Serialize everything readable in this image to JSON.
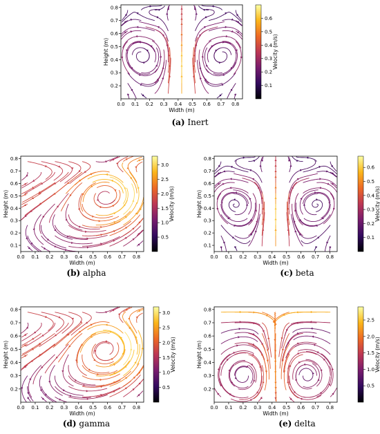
{
  "colorscale": [
    "#000004",
    "#320a5e",
    "#781c6d",
    "#bc3754",
    "#ed6925",
    "#fbb61a",
    "#fcffa4"
  ],
  "chart_data": [
    {
      "type": "streamplot",
      "caption_label": "(a)",
      "caption_text": "Inert",
      "xlabel": "Width (m)",
      "ylabel": "Height (m)",
      "xlim": [
        0.0,
        0.85
      ],
      "ylim": [
        0.1,
        0.82
      ],
      "xticks": [
        "0.0",
        "0.1",
        "0.2",
        "0.3",
        "0.4",
        "0.5",
        "0.6",
        "0.7",
        "0.8"
      ],
      "yticks": [
        "0.2",
        "0.3",
        "0.4",
        "0.5",
        "0.6",
        "0.7",
        "0.8"
      ],
      "colorbar_label": "Velocity (m/s)",
      "colorbar_range": [
        0.0,
        0.7
      ],
      "colorbar_ticks": [
        "0.1",
        "0.2",
        "0.3",
        "0.4",
        "0.5",
        "0.6"
      ],
      "flow_pattern": "symmetric-jets"
    },
    {
      "type": "streamplot",
      "caption_label": "(b)",
      "caption_text": "alpha",
      "xlabel": "Width (m)",
      "ylabel": "Height (m)",
      "xlim": [
        0.0,
        0.85
      ],
      "ylim": [
        0.05,
        0.82
      ],
      "xticks": [
        "0.0",
        "0.1",
        "0.2",
        "0.3",
        "0.4",
        "0.5",
        "0.6",
        "0.7",
        "0.8"
      ],
      "yticks": [
        "0.1",
        "0.2",
        "0.3",
        "0.4",
        "0.5",
        "0.6",
        "0.7",
        "0.8"
      ],
      "colorbar_label": "Velocity (m/s)",
      "colorbar_range": [
        0.0,
        3.3
      ],
      "colorbar_ticks": [
        "0.5",
        "1.0",
        "1.5",
        "2.0",
        "2.5",
        "3.0"
      ],
      "flow_pattern": "single-vortex"
    },
    {
      "type": "streamplot",
      "caption_label": "(c)",
      "caption_text": "beta",
      "xlabel": "Width (m)",
      "ylabel": "Height (m)",
      "xlim": [
        0.0,
        0.85
      ],
      "ylim": [
        0.05,
        0.82
      ],
      "xticks": [
        "0.0",
        "0.1",
        "0.2",
        "0.3",
        "0.4",
        "0.5",
        "0.6",
        "0.7",
        "0.8"
      ],
      "yticks": [
        "0.1",
        "0.2",
        "0.3",
        "0.4",
        "0.5",
        "0.6",
        "0.7",
        "0.8"
      ],
      "colorbar_label": "Velocity (m/s)",
      "colorbar_range": [
        0.0,
        0.68
      ],
      "colorbar_ticks": [
        "0.1",
        "0.2",
        "0.3",
        "0.4",
        "0.5",
        "0.6"
      ],
      "flow_pattern": "symmetric-jets"
    },
    {
      "type": "streamplot",
      "caption_label": "(d)",
      "caption_text": "gamma",
      "xlabel": "Width (m)",
      "ylabel": "Height (m)",
      "xlim": [
        0.0,
        0.85
      ],
      "ylim": [
        0.1,
        0.82
      ],
      "xticks": [
        "0.0",
        "0.1",
        "0.2",
        "0.3",
        "0.4",
        "0.5",
        "0.6",
        "0.7",
        "0.8"
      ],
      "yticks": [
        "0.2",
        "0.3",
        "0.4",
        "0.5",
        "0.6",
        "0.7",
        "0.8"
      ],
      "colorbar_label": "Velocity (m/s)",
      "colorbar_range": [
        0.0,
        3.2
      ],
      "colorbar_ticks": [
        "0.5",
        "1.0",
        "1.5",
        "2.0",
        "2.5",
        "3.0"
      ],
      "flow_pattern": "single-vortex"
    },
    {
      "type": "streamplot",
      "caption_label": "(e)",
      "caption_text": "delta",
      "xlabel": "Width (m)",
      "ylabel": "Height (m)",
      "xlim": [
        0.0,
        0.85
      ],
      "ylim": [
        0.1,
        0.82
      ],
      "xticks": [
        "0.0",
        "0.1",
        "0.2",
        "0.3",
        "0.4",
        "0.5",
        "0.6",
        "0.7",
        "0.8"
      ],
      "yticks": [
        "0.2",
        "0.3",
        "0.4",
        "0.5",
        "0.6",
        "0.7",
        "0.8"
      ],
      "colorbar_label": "Velocity (m/s)",
      "colorbar_range": [
        0.0,
        2.9
      ],
      "colorbar_ticks": [
        "0.5",
        "1.0",
        "1.5",
        "2.0",
        "2.5"
      ],
      "flow_pattern": "twin-vortex"
    }
  ]
}
